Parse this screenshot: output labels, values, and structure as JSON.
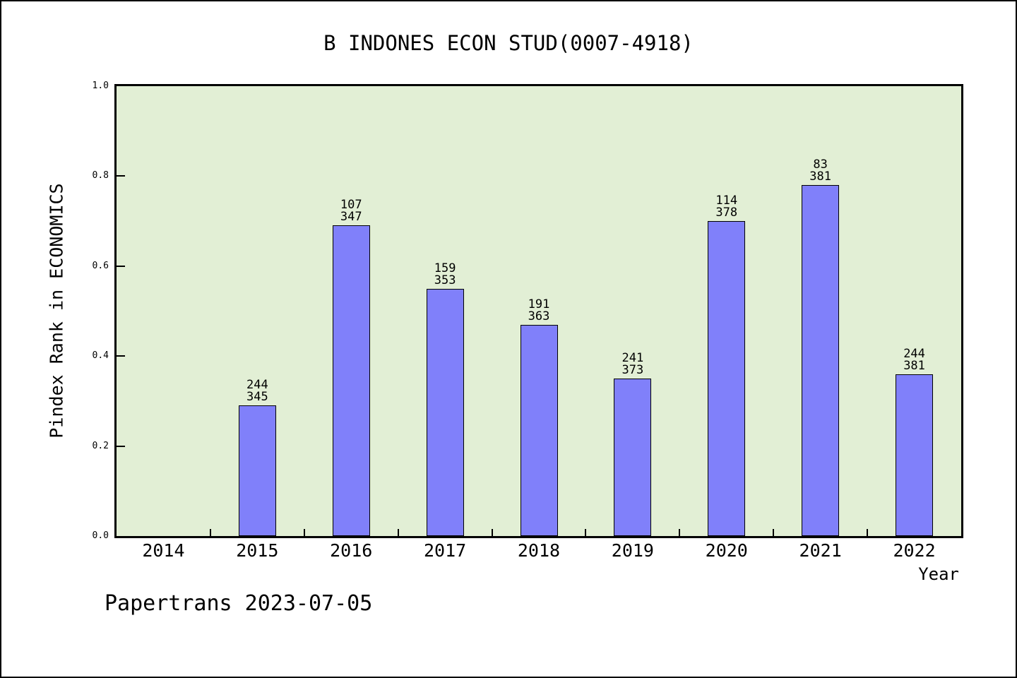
{
  "page": {
    "footer": "Papertrans 2023-07-05"
  },
  "colors": {
    "bar_fill": "#8080fa",
    "bar_edge": "#000000",
    "plot_bg": "#e2efd5",
    "page_bg": "#ffffff",
    "text": "#000000"
  },
  "chart_data": {
    "type": "bar",
    "title": "B INDONES ECON STUD(0007-4918)",
    "xlabel": "Year",
    "ylabel": "Pindex Rank in ECONOMICS",
    "ylim": [
      0.0,
      1.0
    ],
    "ytick_labels": [
      "0.0",
      "0.2",
      "0.4",
      "0.6",
      "0.8",
      "1.0"
    ],
    "grid": false,
    "legend_position": "none",
    "categories": [
      "2014",
      "2015",
      "2016",
      "2017",
      "2018",
      "2019",
      "2020",
      "2021",
      "2022"
    ],
    "values": [
      null,
      0.29,
      0.69,
      0.55,
      0.47,
      0.35,
      0.7,
      0.78,
      0.36
    ],
    "annotations": [
      null,
      {
        "rank": "244",
        "total": "345"
      },
      {
        "rank": "107",
        "total": "347"
      },
      {
        "rank": "159",
        "total": "353"
      },
      {
        "rank": "191",
        "total": "363"
      },
      {
        "rank": "241",
        "total": "373"
      },
      {
        "rank": "114",
        "total": "378"
      },
      {
        "rank": "83",
        "total": "381"
      },
      {
        "rank": "244",
        "total": "381"
      }
    ]
  }
}
